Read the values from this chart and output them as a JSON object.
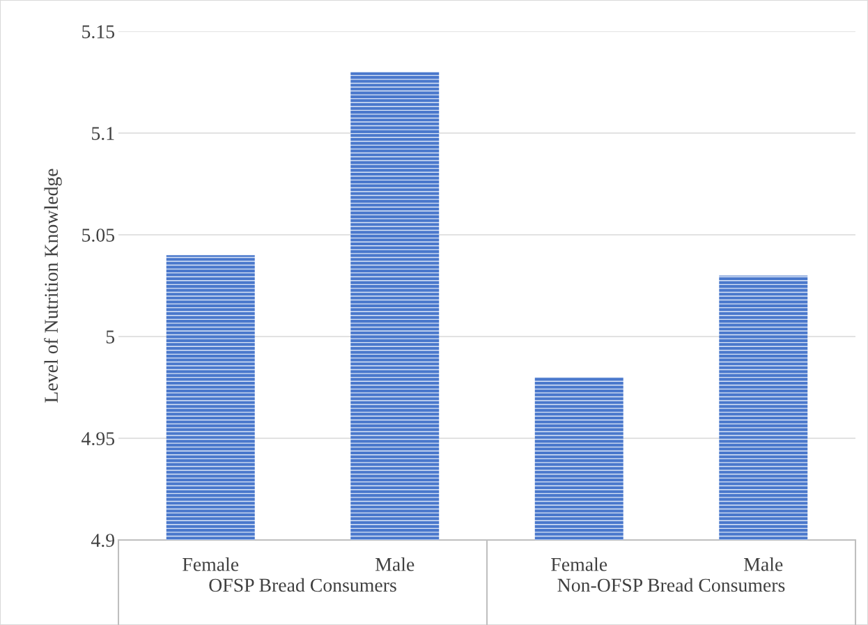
{
  "chart_data": {
    "type": "bar",
    "ylabel": "Level of Nutrition Knowledge",
    "categories": [
      "Female",
      "Male",
      "Female",
      "Male"
    ],
    "values": [
      5.04,
      5.13,
      4.98,
      5.03
    ],
    "color": "#4a78cc",
    "ylim": [
      4.9,
      5.15
    ],
    "yticks": [
      4.9,
      4.95,
      5,
      5.05,
      5.1,
      5.15
    ],
    "grid": "y",
    "annotations": [
      "OFSP Bread Consumers",
      "Non-OFSP Bread Consumers"
    ]
  }
}
